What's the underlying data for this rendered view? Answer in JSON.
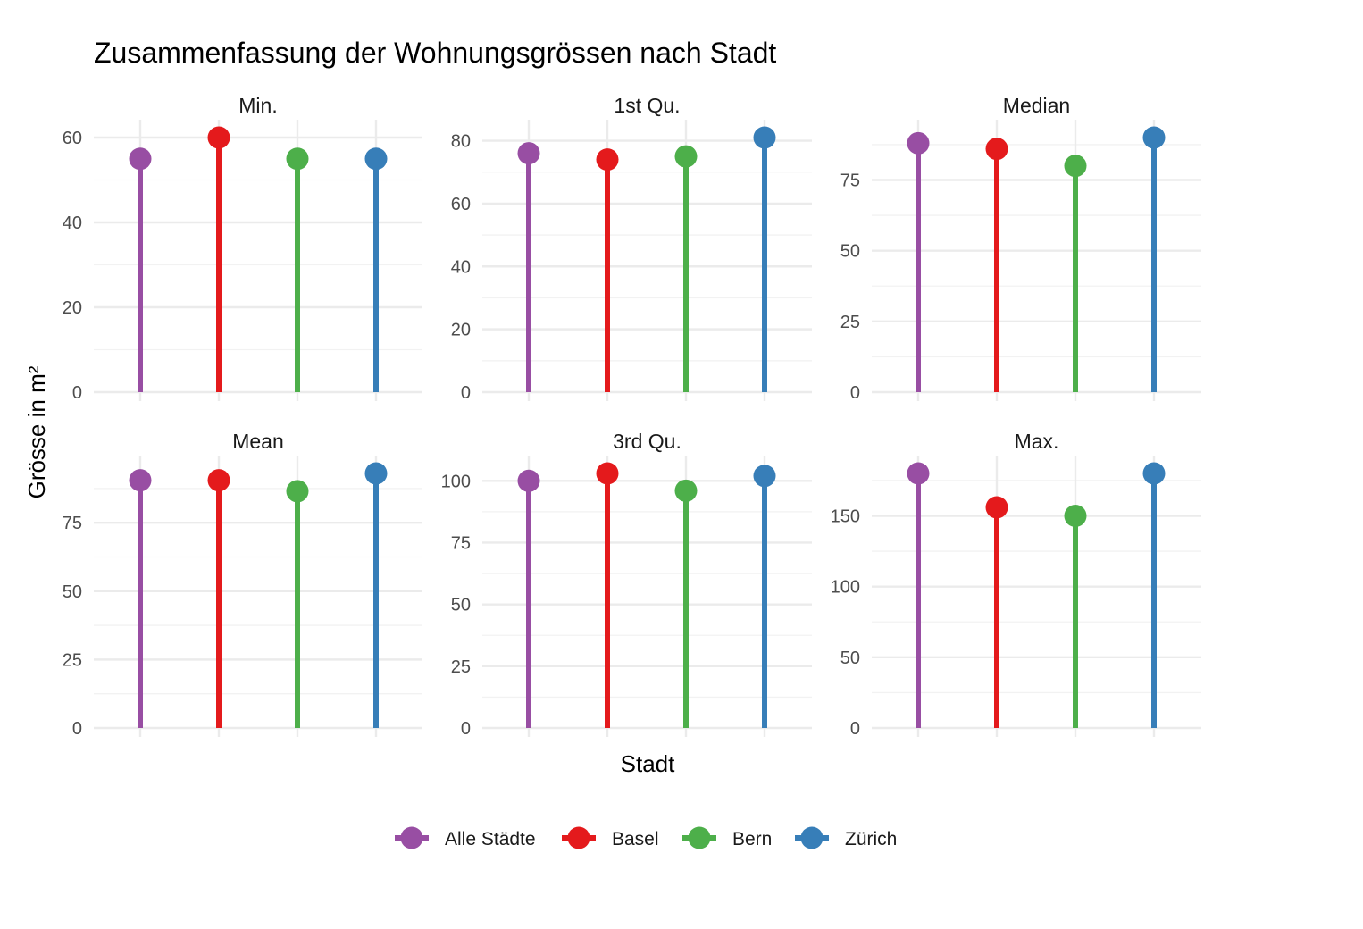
{
  "chart_data": {
    "type": "lollipop",
    "title": "Zusammenfassung der Wohnungsgrössen nach Stadt",
    "xlabel": "Stadt",
    "ylabel": "Grösse in m²",
    "grid": true,
    "legend_position": "bottom",
    "categories": [
      "Alle Städte",
      "Basel",
      "Bern",
      "Zürich"
    ],
    "colors": [
      "#984EA3",
      "#E41A1C",
      "#4DAF4A",
      "#377EB8"
    ],
    "facets": [
      {
        "name": "Min.",
        "values": [
          55,
          60,
          55,
          55
        ],
        "ylim": [
          0,
          60
        ],
        "ticks": [
          0,
          20,
          40,
          60
        ],
        "tick_labels": [
          "0",
          "20",
          "40",
          "60"
        ]
      },
      {
        "name": "1st Qu.",
        "values": [
          76,
          74,
          75,
          81
        ],
        "ylim": [
          0,
          81
        ],
        "ticks": [
          0,
          20,
          40,
          60,
          80
        ],
        "tick_labels": [
          "0",
          "20",
          "40",
          "60",
          "80"
        ]
      },
      {
        "name": "Median",
        "values": [
          88,
          86,
          80,
          90
        ],
        "ylim": [
          0,
          90
        ],
        "ticks": [
          0,
          25,
          50,
          75
        ],
        "tick_labels": [
          "0",
          "25",
          "50",
          "75"
        ]
      },
      {
        "name": "Mean",
        "values": [
          90.5,
          90.5,
          86.5,
          93
        ],
        "ylim": [
          0,
          93
        ],
        "ticks": [
          0,
          25,
          50,
          75
        ],
        "tick_labels": [
          "0",
          "25",
          "50",
          "75"
        ]
      },
      {
        "name": "3rd Qu.",
        "values": [
          100,
          103,
          96,
          102
        ],
        "ylim": [
          0,
          103
        ],
        "ticks": [
          0,
          25,
          50,
          75,
          100
        ],
        "tick_labels": [
          "0",
          "25",
          "50",
          "75",
          "100"
        ]
      },
      {
        "name": "Max.",
        "values": [
          180,
          156,
          150,
          180
        ],
        "ylim": [
          0,
          180
        ],
        "ticks": [
          0,
          50,
          100,
          150
        ],
        "tick_labels": [
          "0",
          "50",
          "100",
          "150"
        ]
      }
    ]
  }
}
